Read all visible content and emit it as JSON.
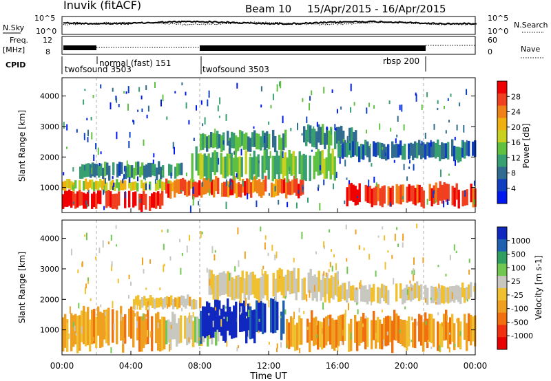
{
  "header": {
    "station": "Inuvik (fitACF)",
    "beam": "Beam 10",
    "date_range": "15/Apr/2015 - 16/Apr/2015"
  },
  "strip_labels": {
    "nsky": "N.Sky",
    "nsearch": "N.Search",
    "freq_line1": "Freq.",
    "freq_line2": "[MHz]",
    "nave": "Nave",
    "cpid": "CPID",
    "nsky_ticks": [
      "10^5",
      "10^0"
    ],
    "nsearch_ticks": [
      "10^5",
      "10^0"
    ],
    "freq_ticks": [
      "12",
      "8"
    ],
    "nave_ticks": [
      "60",
      "0"
    ]
  },
  "cpid_segments": [
    {
      "label": "twofsound 3503",
      "start_h": 0,
      "end_h": 2
    },
    {
      "label": "normal (fast) 151",
      "start_h": 2,
      "end_h": 8
    },
    {
      "label": "twofsound 3503",
      "start_h": 8,
      "end_h": 21
    },
    {
      "label": "rbsp 200",
      "start_h": 21,
      "end_h": 21
    }
  ],
  "x_axis": {
    "label": "Time UT",
    "ticks": [
      "00:00",
      "04:00",
      "08:00",
      "12:00",
      "16:00",
      "20:00",
      "00:00"
    ],
    "range_hours": [
      0,
      24
    ]
  },
  "chart_data": [
    {
      "type": "heatmap",
      "title": "Power",
      "ylabel": "Slant Range [km]",
      "ylim": [
        180,
        4600
      ],
      "yticks": [
        "1000",
        "2000",
        "3000",
        "4000"
      ],
      "colorbar_label": "Power [dB]",
      "colorbar_ticks": [
        "28",
        "24",
        "20",
        "16",
        "12",
        "8",
        "4"
      ],
      "colors": [
        "#0018f0",
        "#1040c0",
        "#306c90",
        "#38a070",
        "#60c040",
        "#c8d020",
        "#f0b010",
        "#f08018",
        "#f04020",
        "#f00000"
      ],
      "bands": [
        {
          "start_h": 0.0,
          "end_h": 5.8,
          "range_lo": 300,
          "range_hi": 900,
          "value": 30
        },
        {
          "start_h": 0.0,
          "end_h": 8.0,
          "range_lo": 900,
          "range_hi": 1250,
          "value": 18
        },
        {
          "start_h": 1.0,
          "end_h": 7.0,
          "range_lo": 1300,
          "range_hi": 1800,
          "value": 10
        },
        {
          "start_h": 6.0,
          "end_h": 14.0,
          "range_lo": 700,
          "range_hi": 1300,
          "value": 26
        },
        {
          "start_h": 7.5,
          "end_h": 16.0,
          "range_lo": 1300,
          "range_hi": 2200,
          "value": 14
        },
        {
          "start_h": 8.0,
          "end_h": 13.0,
          "range_lo": 2200,
          "range_hi": 2800,
          "value": 12
        },
        {
          "start_h": 14.0,
          "end_h": 17.0,
          "range_lo": 2300,
          "range_hi": 3000,
          "value": 10
        },
        {
          "start_h": 16.0,
          "end_h": 24.0,
          "range_lo": 1900,
          "range_hi": 2500,
          "value": 8
        },
        {
          "start_h": 16.5,
          "end_h": 24.0,
          "range_lo": 400,
          "range_hi": 1100,
          "value": 28
        }
      ]
    },
    {
      "type": "heatmap",
      "title": "Velocity",
      "ylabel": "Slant Range [km]",
      "ylim": [
        180,
        4600
      ],
      "yticks": [
        "1000",
        "2000",
        "3000",
        "4000"
      ],
      "colorbar_label": "Velocity [m s-1]",
      "colorbar_ticks": [
        "1000",
        "500",
        "100",
        "25",
        "-25",
        "-100",
        "-500",
        "-1000"
      ],
      "colors": [
        "#1028c0",
        "#2060b0",
        "#30a060",
        "#70c850",
        "#c8c8c0",
        "#f0c030",
        "#f0a020",
        "#f07010",
        "#f03010",
        "#e80000"
      ],
      "bands": [
        {
          "start_h": 0.0,
          "end_h": 6.0,
          "range_lo": 400,
          "range_hi": 1700,
          "value": -300
        },
        {
          "start_h": 6.0,
          "end_h": 9.0,
          "range_lo": 500,
          "range_hi": 1500,
          "value": 150
        },
        {
          "start_h": 8.0,
          "end_h": 13.0,
          "range_lo": 700,
          "range_hi": 1900,
          "value": 900
        },
        {
          "start_h": 8.5,
          "end_h": 16.0,
          "range_lo": 2000,
          "range_hi": 2900,
          "value": 0
        },
        {
          "start_h": 13.0,
          "end_h": 24.0,
          "range_lo": 400,
          "range_hi": 1500,
          "value": -300
        },
        {
          "start_h": 16.0,
          "end_h": 24.0,
          "range_lo": 1900,
          "range_hi": 2500,
          "value": 0
        },
        {
          "start_h": 4.0,
          "end_h": 8.0,
          "range_lo": 1700,
          "range_hi": 2100,
          "value": -60
        }
      ]
    }
  ]
}
